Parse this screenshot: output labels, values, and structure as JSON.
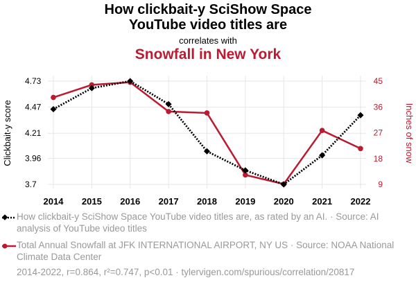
{
  "titles": {
    "line1": "How clickbait-y SciShow Space",
    "line2": "YouTube video titles are",
    "correlates": "correlates with",
    "line3": "Snowfall in New York"
  },
  "colors": {
    "series1": "#000000",
    "series2": "#bb1a30",
    "muted": "#999999",
    "grid": "#e6e6e6"
  },
  "chart_data": {
    "type": "line",
    "x": [
      2014,
      2015,
      2016,
      2017,
      2018,
      2019,
      2020,
      2021,
      2022
    ],
    "x_ticks": [
      "2014",
      "2015",
      "2016",
      "2017",
      "2018",
      "2019",
      "2020",
      "2021",
      "2022"
    ],
    "y_left": {
      "label": "Clickbait-y score",
      "ticks": [
        "4.73",
        "4.47",
        "4.21",
        "3.96",
        "3.7"
      ],
      "tick_values": [
        4.73,
        4.47,
        4.21,
        3.96,
        3.7
      ],
      "range": [
        3.7,
        4.73
      ]
    },
    "y_right": {
      "label": "Inches of snow",
      "ticks": [
        "45",
        "36",
        "27",
        "18",
        "9"
      ],
      "tick_values": [
        45,
        36,
        27,
        18,
        9
      ],
      "range": [
        9,
        45
      ]
    },
    "grid": true,
    "series": [
      {
        "axis": "left",
        "style": "dotted-diamond",
        "values": [
          4.45,
          4.66,
          4.73,
          4.5,
          4.03,
          3.84,
          3.7,
          3.99,
          4.39
        ]
      },
      {
        "axis": "right",
        "style": "solid-circle",
        "values": [
          39.3,
          43.7,
          44.6,
          34.4,
          33.9,
          12.3,
          9.1,
          27.8,
          21.5
        ]
      }
    ]
  },
  "legend": [
    {
      "text": "How clickbait-y SciShow Space YouTube video titles are, as rated by an AI. · Source: AI analysis of YouTube video titles"
    },
    {
      "text": "Total Annual Snowfall at JFK INTERNATIONAL AIRPORT, NY US · Source: NOAA National Climate Data Center"
    }
  ],
  "footer": "2014-2022, r=0.864, r²=0.747, p<0.01 · tylervigen.com/spurious/correlation/20817"
}
